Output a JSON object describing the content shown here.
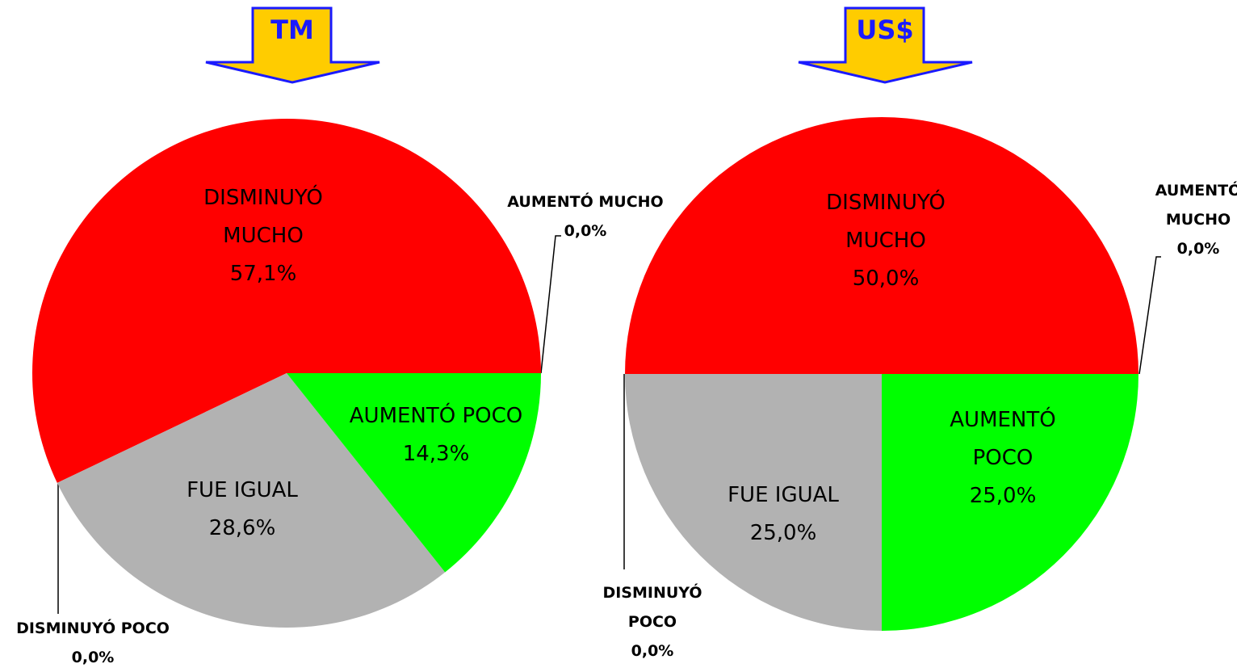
{
  "chart_data": [
    {
      "type": "pie",
      "title": "TM",
      "categories": [
        "AUMENTÓ MUCHO",
        "DISMINUYÓ MUCHO",
        "DISMINUYÓ POCO",
        "FUE IGUAL",
        "AUMENTÓ POCO"
      ],
      "values": [
        0,
        57.1,
        0,
        28.6,
        14.3
      ],
      "value_labels": [
        "0,0%",
        "57,1%",
        "0,0%",
        "28,6%",
        "14,3%"
      ],
      "colors": [
        "#0000ff",
        "#ff0000",
        "#ffff00",
        "#b2b2b2",
        "#00ff00"
      ]
    },
    {
      "type": "pie",
      "title": "US$",
      "categories": [
        "AUMENTÓ MUCHO",
        "DISMINUYÓ MUCHO",
        "DISMINUYÓ POCO",
        "FUE IGUAL",
        "AUMENTÓ POCO"
      ],
      "values": [
        0,
        50,
        0,
        25,
        25
      ],
      "value_labels": [
        "0,0%",
        "50,0%",
        "0,0%",
        "25,0%",
        "25,0%"
      ],
      "colors": [
        "#0000ff",
        "#ff0000",
        "#ffff00",
        "#b2b2b2",
        "#00ff00"
      ]
    }
  ]
}
